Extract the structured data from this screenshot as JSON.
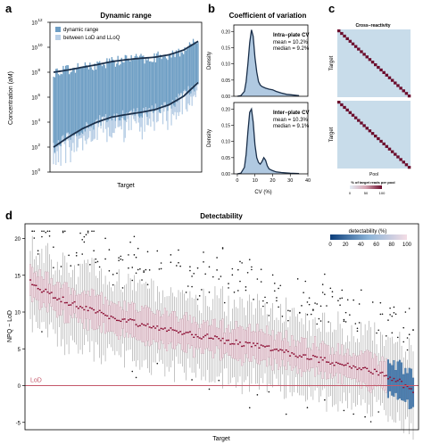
{
  "chart_data": [
    {
      "panel": "a",
      "type": "area",
      "title": "Dynamic range",
      "xlabel": "Target",
      "ylabel": "Concentration (aM)",
      "yscale": "log10",
      "ylim": [
        1,
        1000000000000.0
      ],
      "yticks": [
        1,
        100,
        10000,
        1000000,
        100000000,
        10000000000,
        1000000000000
      ],
      "ytick_labels": [
        "10",
        "10",
        "10",
        "10",
        "10",
        "10",
        "10"
      ],
      "ytick_exponents": [
        "0",
        "2",
        "4",
        "6",
        "8",
        "10",
        "12"
      ],
      "legend": [
        "dynamic range",
        "between LoD and LLoQ"
      ],
      "legend_position": "top-left",
      "x": [
        0,
        0.1,
        0.2,
        0.3,
        0.4,
        0.5,
        0.6,
        0.7,
        0.8,
        0.9,
        1.0
      ],
      "upper_fit": [
        100000000.0,
        150000000.0,
        250000000.0,
        400000000.0,
        700000000.0,
        1000000000.0,
        1300000000.0,
        1600000000.0,
        2500000000.0,
        6000000000.0,
        30000000000.0
      ],
      "lower_fit": [
        100,
        600,
        3000,
        10000.0,
        25000.0,
        40000.0,
        60000.0,
        100000.0,
        250000.0,
        1200000.0,
        15000000.0
      ]
    },
    {
      "panel": "b",
      "type": "line",
      "title": "Coefficient of variation",
      "xlabel": "CV (%)",
      "ylabel": "Density",
      "xlim": [
        -2,
        40
      ],
      "ylim": [
        0,
        0.22
      ],
      "xticks": [
        0,
        10,
        20,
        30,
        40
      ],
      "yticks": [
        0,
        0.05,
        0.1,
        0.15,
        0.2
      ],
      "ytick_labels": [
        "0.00",
        "0.05",
        "0.10",
        "0.15",
        "0.20"
      ],
      "series": [
        {
          "label": "Intra−plate CV",
          "stats": [
            "mean = 10.2%",
            "median = 9.2%"
          ],
          "x": [
            0,
            2,
            4,
            5,
            6,
            7,
            8,
            9,
            10,
            11,
            12,
            13,
            14,
            16,
            18,
            20,
            22,
            25,
            28,
            30,
            35
          ],
          "y": [
            0,
            0.002,
            0.015,
            0.045,
            0.1,
            0.165,
            0.205,
            0.185,
            0.12,
            0.075,
            0.045,
            0.035,
            0.03,
            0.025,
            0.022,
            0.02,
            0.015,
            0.01,
            0.006,
            0.005,
            0.002
          ]
        },
        {
          "label": "Inter−plate CV",
          "stats": [
            "mean = 10.3%",
            "median = 9.1%"
          ],
          "x": [
            0,
            2,
            4,
            5,
            6,
            7,
            8,
            9,
            10,
            11,
            12,
            13,
            14,
            15,
            16,
            17,
            18,
            20,
            22,
            25,
            30,
            35
          ],
          "y": [
            0,
            0.002,
            0.02,
            0.06,
            0.13,
            0.19,
            0.2,
            0.16,
            0.09,
            0.05,
            0.035,
            0.03,
            0.038,
            0.05,
            0.042,
            0.025,
            0.015,
            0.01,
            0.006,
            0.004,
            0.002,
            0.001
          ]
        }
      ]
    },
    {
      "panel": "c",
      "type": "heatmap",
      "title": "Cross−reactivity",
      "xlabel": "Pool",
      "ylabel": "Target",
      "colorbar_label": "% of target reads per pool",
      "colorbar_ticks": [
        0,
        50,
        100
      ],
      "pattern": "diagonal",
      "matrices": 2,
      "diagonal_steps": 26
    },
    {
      "panel": "d",
      "type": "boxplot",
      "title": "Detectability",
      "xlabel": "Target",
      "ylabel": "NPQ − LoD",
      "ylim": [
        -6,
        22
      ],
      "yticks": [
        -5,
        0,
        5,
        10,
        15,
        20
      ],
      "hline": {
        "y": 0,
        "label": "LoD"
      },
      "colorbar": {
        "label": "detectability (%)",
        "ticks": [
          0,
          20,
          40,
          60,
          80,
          100
        ],
        "position": "top-right"
      },
      "median_profile": {
        "x": [
          0,
          0.05,
          0.1,
          0.2,
          0.3,
          0.4,
          0.5,
          0.6,
          0.7,
          0.8,
          0.9,
          0.95,
          1.0
        ],
        "y": [
          14,
          12.5,
          11.3,
          9.5,
          8.2,
          7.2,
          6.2,
          5.3,
          4.2,
          3.0,
          1.8,
          1.0,
          -0.8
        ]
      },
      "iqr_half_width": 2.0,
      "n_targets": 200
    }
  ],
  "colors": {
    "range_fill": "#6e9ec4",
    "lod_band": "#b9cfe6",
    "fit_line": "#1a2f4a",
    "density_fill": "#a7c3de",
    "heat_bg": "#c8dcea",
    "heat_diag": "#6b0c2c",
    "lod_line": "#c4586a",
    "median": "#8f1237",
    "box_fill": "#f0dde4",
    "whisker": "#8a8a8a"
  }
}
